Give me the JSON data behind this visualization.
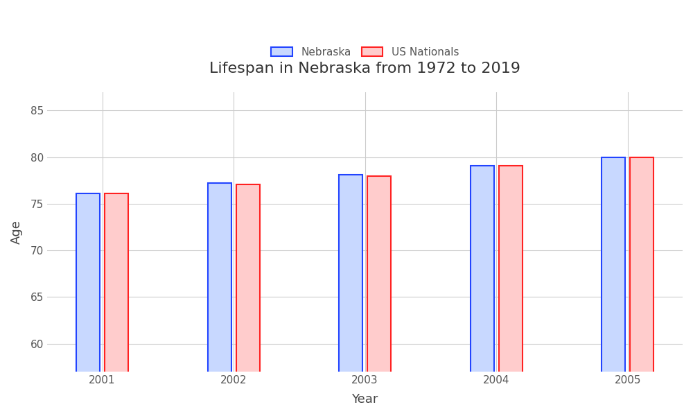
{
  "title": "Lifespan in Nebraska from 1972 to 2019",
  "years": [
    2001,
    2002,
    2003,
    2004,
    2005
  ],
  "nebraska_values": [
    76.1,
    77.2,
    78.1,
    79.1,
    80.0
  ],
  "us_nationals_values": [
    76.1,
    77.1,
    78.0,
    79.1,
    80.0
  ],
  "xlabel": "Year",
  "ylabel": "Age",
  "ylim": [
    57,
    87
  ],
  "yticks": [
    60,
    65,
    70,
    75,
    80,
    85
  ],
  "bar_width": 0.18,
  "nebraska_fill": "#c8d8ff",
  "nebraska_edge": "#2244ff",
  "us_fill": "#ffcccc",
  "us_edge": "#ff2222",
  "legend_labels": [
    "Nebraska",
    "US Nationals"
  ],
  "background_color": "#ffffff",
  "plot_bg_color": "#ffffff",
  "grid_color": "#cccccc",
  "title_fontsize": 16,
  "axis_label_fontsize": 13,
  "tick_fontsize": 11,
  "legend_fontsize": 11
}
